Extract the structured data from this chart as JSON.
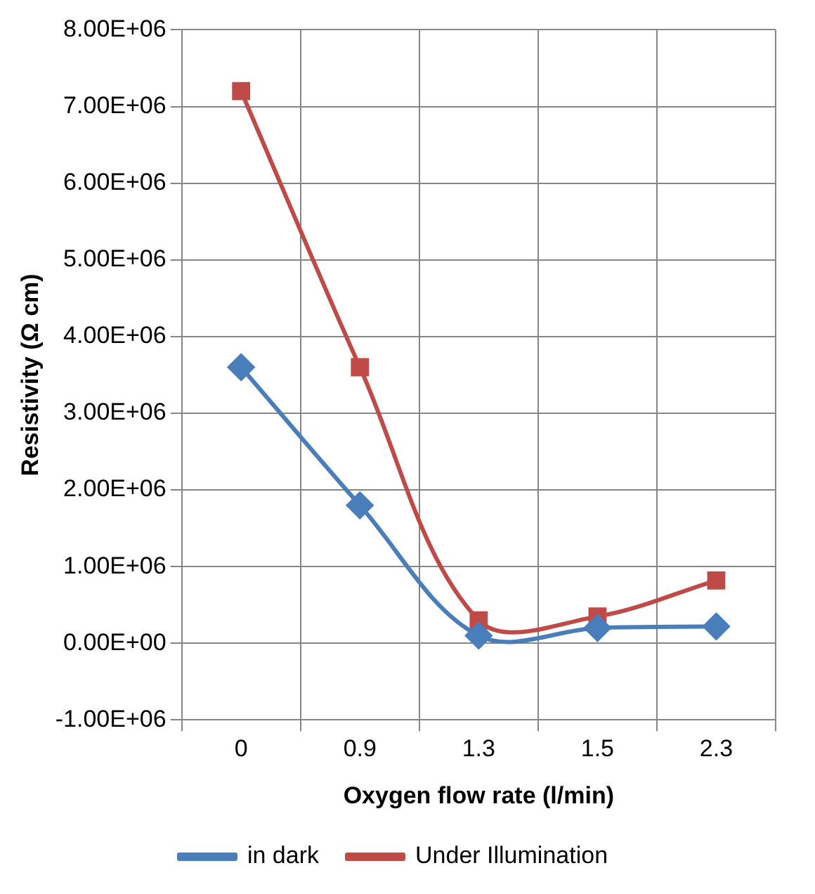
{
  "chart_data": {
    "type": "line",
    "xlabel": "Oxygen flow rate (l/min)",
    "ylabel": "Resistivity (Ω cm)",
    "categories": [
      "0",
      "0.9",
      "1.3",
      "1.5",
      "2.3"
    ],
    "series": [
      {
        "name": "in dark",
        "color": "#4a7ebb",
        "values": [
          3600000,
          1800000,
          100000,
          200000,
          220000
        ],
        "marker": "diamond"
      },
      {
        "name": "Under Illumination",
        "color": "#be4b48",
        "values": [
          7200000,
          3600000,
          300000,
          350000,
          820000
        ],
        "marker": "square"
      }
    ],
    "ylim": [
      -1000000,
      8000000
    ],
    "yticks": [
      {
        "value": -1000000,
        "label": "-1.00E+06"
      },
      {
        "value": 0,
        "label": "0.00E+00"
      },
      {
        "value": 1000000,
        "label": "1.00E+06"
      },
      {
        "value": 2000000,
        "label": "2.00E+06"
      },
      {
        "value": 3000000,
        "label": "3.00E+06"
      },
      {
        "value": 4000000,
        "label": "4.00E+06"
      },
      {
        "value": 5000000,
        "label": "5.00E+06"
      },
      {
        "value": 6000000,
        "label": "6.00E+06"
      },
      {
        "value": 7000000,
        "label": "7.00E+06"
      },
      {
        "value": 8000000,
        "label": "8.00E+06"
      }
    ],
    "grid": true,
    "legend": "bottom",
    "line_style": "solid"
  }
}
